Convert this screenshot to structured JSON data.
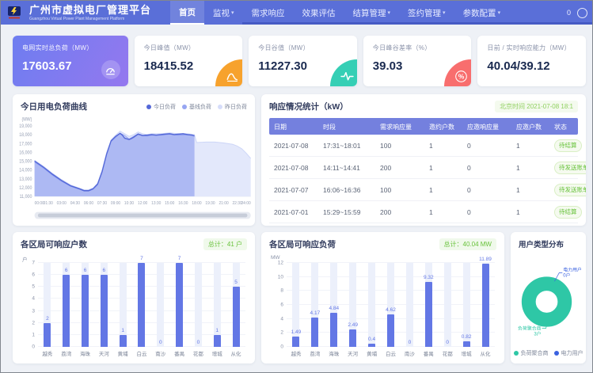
{
  "app": {
    "title": "广州市虚拟电厂管理平台",
    "subtitle": "Guangzhou Virtual Power Plant Management Platform",
    "nav_right_badge": "0"
  },
  "nav": {
    "items": [
      {
        "label": "首页",
        "active": true,
        "caret": false
      },
      {
        "label": "监视",
        "active": false,
        "caret": true
      },
      {
        "label": "需求响应",
        "active": false,
        "caret": false
      },
      {
        "label": "效果评估",
        "active": false,
        "caret": false
      },
      {
        "label": "结算管理",
        "active": false,
        "caret": true
      },
      {
        "label": "签约管理",
        "active": false,
        "caret": true
      },
      {
        "label": "参数配置",
        "active": false,
        "caret": true
      }
    ]
  },
  "kpis": [
    {
      "label": "电网实时总负荷（MW）",
      "value": "17603.67",
      "icon": "gauge-icon",
      "variant": "primary",
      "accent_from": "#6e7df0",
      "accent_to": "#9478ef"
    },
    {
      "label": "今日峰值（MW）",
      "value": "18415.52",
      "icon": "peak-curve-icon",
      "variant": "white",
      "accent": "#f7a22d"
    },
    {
      "label": "今日谷值（MW）",
      "value": "11227.30",
      "icon": "pulse-icon",
      "variant": "white",
      "accent": "#35cfb5"
    },
    {
      "label": "今日峰谷差率（%）",
      "value": "39.03",
      "icon": "percent-icon",
      "variant": "white",
      "accent": "#f86e6e"
    },
    {
      "label": "日前 / 实时响应能力（MW）",
      "value": "40.04/39.12",
      "icon": null,
      "variant": "white",
      "accent": null
    }
  ],
  "response_table": {
    "title": "响应情况统计（kW）",
    "time_badge": "北京时间 2021-07-08 18:1",
    "columns": [
      "日期",
      "时段",
      "需求响应量",
      "邀约户数",
      "应邀响应量",
      "应邀户数",
      "状态",
      "操作"
    ],
    "rows": [
      {
        "cells": [
          "2021-07-08",
          "17:31~18:01",
          "100",
          "1",
          "0",
          "1"
        ],
        "status": "待结算",
        "action": "查看"
      },
      {
        "cells": [
          "2021-07-08",
          "14:11~14:41",
          "200",
          "1",
          "0",
          "1"
        ],
        "status": "待发送账单",
        "action": "查看"
      },
      {
        "cells": [
          "2021-07-07",
          "16:06~16:36",
          "100",
          "1",
          "0",
          "1"
        ],
        "status": "待发送账单",
        "action": "查看"
      },
      {
        "cells": [
          "2021-07-01",
          "15:29~15:59",
          "200",
          "1",
          "0",
          "1"
        ],
        "status": "待结算",
        "action": "查看"
      }
    ]
  },
  "chart_data": [
    {
      "id": "load_curve",
      "type": "area",
      "title": "今日用电负荷曲线",
      "ylabel": "(MW)",
      "ylim": [
        11000,
        19000
      ],
      "ytick_step": 1000,
      "x_ticks": [
        "00:00",
        "01:30",
        "03:00",
        "04:30",
        "06:00",
        "07:30",
        "09:00",
        "10:30",
        "12:00",
        "13:30",
        "15:00",
        "16:30",
        "18:00",
        "19:30",
        "21:00",
        "22:30",
        "24:00"
      ],
      "legend": [
        {
          "name": "今日负荷",
          "color": "#5468d8"
        },
        {
          "name": "基线负荷",
          "color": "#97a6f2"
        },
        {
          "name": "昨日负荷",
          "color": "#d6ddfa"
        }
      ],
      "series": [
        {
          "name": "昨日负荷",
          "stroke": "#ccd5f7",
          "fill": "#e3e8fb",
          "x": [
            0,
            1,
            2,
            3,
            4,
            5,
            5.5,
            6,
            6.5,
            7,
            7.5,
            8,
            8.5,
            9,
            9.5,
            10,
            10.5,
            11,
            11.5,
            12,
            12.5,
            13,
            14,
            15,
            16,
            17,
            17.75,
            18,
            19,
            20,
            21,
            22,
            22.5,
            23,
            23.5,
            24
          ],
          "y": [
            15100,
            14400,
            13600,
            12900,
            12300,
            11900,
            11750,
            11750,
            11950,
            12500,
            14000,
            16000,
            17400,
            17950,
            18400,
            18100,
            17800,
            18000,
            18300,
            18100,
            18000,
            18100,
            18100,
            18200,
            18100,
            18100,
            18000,
            17100,
            17150,
            17150,
            17050,
            16900,
            16700,
            16400,
            15900,
            15300
          ]
        },
        {
          "name": "基线负荷",
          "stroke": "#97a6f2",
          "fill": "rgba(151,166,242,0.35)",
          "x": [
            0,
            1,
            2,
            3,
            4,
            5,
            5.5,
            6,
            6.5,
            7,
            7.5,
            8,
            8.5,
            9,
            9.5,
            10,
            10.5,
            11,
            11.5,
            12,
            12.5,
            13,
            14,
            15,
            16,
            17,
            17.75
          ],
          "y": [
            14900,
            14200,
            13400,
            12700,
            12150,
            11800,
            11600,
            11600,
            11800,
            12300,
            13700,
            15700,
            17200,
            17700,
            18150,
            17900,
            17500,
            17800,
            18100,
            17900,
            17850,
            17950,
            17950,
            18050,
            17950,
            18000,
            17900
          ]
        },
        {
          "name": "今日负荷",
          "stroke": "#5468d8",
          "fill": "rgba(110,130,235,0.30)",
          "x": [
            0,
            1,
            2,
            3,
            4,
            5,
            5.5,
            6,
            6.5,
            7,
            7.5,
            8,
            8.5,
            9,
            9.5,
            9.75,
            10,
            10.5,
            10.75,
            11,
            11.5,
            12,
            12.5,
            13,
            13.5,
            14,
            14.5,
            15,
            15.5,
            16,
            16.5,
            17,
            17.5,
            17.75
          ],
          "y": [
            15000,
            14300,
            13500,
            12800,
            12200,
            11850,
            11650,
            11650,
            11850,
            12400,
            13800,
            15800,
            17300,
            17800,
            18150,
            17950,
            17600,
            17450,
            17550,
            17700,
            18050,
            17900,
            17950,
            18000,
            17950,
            18000,
            18050,
            18100,
            18000,
            18050,
            18100,
            18000,
            17950,
            17850
          ]
        }
      ],
      "has_slider": true
    },
    {
      "id": "district_users",
      "type": "bar",
      "title": "各区局可响应户数",
      "total_badge": "总计：41 户",
      "unit": "户",
      "ylim": [
        0,
        7
      ],
      "ytick_step": 1,
      "categories": [
        "越秀",
        "荔湾",
        "海珠",
        "天河",
        "黄埔",
        "白云",
        "南沙",
        "番禺",
        "花都",
        "增城",
        "从化"
      ],
      "values": [
        2,
        6,
        6,
        6,
        1,
        7,
        0,
        7,
        0,
        1,
        5
      ]
    },
    {
      "id": "district_load",
      "type": "bar",
      "title": "各区局可响应负荷",
      "total_badge": "总计：40.04 MW",
      "unit": "MW",
      "ylim": [
        0,
        12
      ],
      "ytick_step": 2,
      "categories": [
        "越秀",
        "荔湾",
        "海珠",
        "天河",
        "黄埔",
        "白云",
        "南沙",
        "番禺",
        "花都",
        "增城",
        "从化"
      ],
      "values": [
        1.49,
        4.17,
        4.84,
        2.49,
        0.4,
        4.62,
        0,
        9.32,
        0,
        0.82,
        11.89
      ]
    },
    {
      "id": "user_type",
      "type": "pie",
      "title": "用户类型分布",
      "slices": [
        {
          "label": "负荷聚合商",
          "value": 3,
          "count_label": "3户",
          "color": "#2ec7a6"
        },
        {
          "label": "电力用户",
          "value": 0,
          "count_label": "0户",
          "color": "#3a62e0"
        }
      ]
    }
  ],
  "colors": {
    "navbar": "#5a6fd8",
    "bar": "#6377e5",
    "green": "#67c23a",
    "table_header": "#7480de"
  }
}
